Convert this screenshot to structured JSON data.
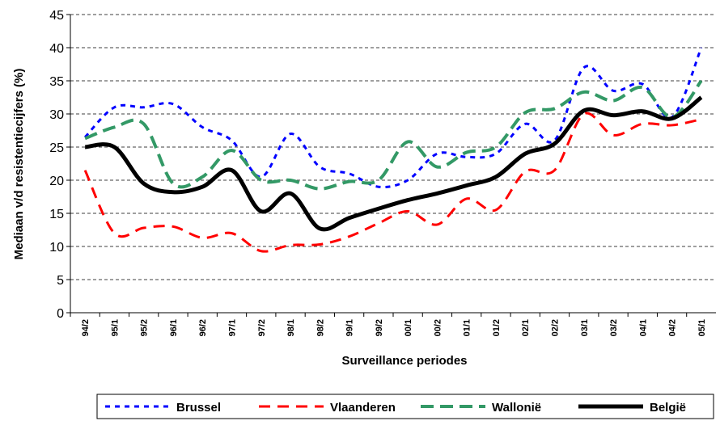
{
  "chart_data": {
    "type": "line",
    "x_label": "Surveillance periodes",
    "y_label": "Mediaan v/d  resistentiecijfers (%)",
    "categories": [
      "94/2",
      "95/1",
      "95/2",
      "96/1",
      "96/2",
      "97/1",
      "97/2",
      "98/1",
      "98/2",
      "99/1",
      "99/2",
      "00/1",
      "00/2",
      "01/1",
      "01/2",
      "02/1",
      "02/2",
      "03/1",
      "03/2",
      "04/1",
      "04/2",
      "05/1"
    ],
    "series": [
      {
        "name": "Brussel",
        "color": "#0000ff",
        "dash": "6 6",
        "width": 3,
        "values": [
          26.5,
          31,
          31,
          31.5,
          28,
          26,
          20.5,
          27,
          22,
          21,
          19,
          20,
          24,
          23.5,
          24,
          28.5,
          26,
          37,
          33.5,
          34.5,
          29.5,
          40
        ]
      },
      {
        "name": "Vlaanderen",
        "color": "#ff0000",
        "dash": "14 9",
        "width": 3,
        "values": [
          21.5,
          12,
          12.8,
          13,
          11.3,
          12,
          9.3,
          10.2,
          10.3,
          11.5,
          13.5,
          15.3,
          13.3,
          17.2,
          15.5,
          21.3,
          21.5,
          30,
          26.8,
          28.5,
          28.3,
          29.2
        ]
      },
      {
        "name": "Wallonië",
        "color": "#339966",
        "dash": "16 8",
        "width": 4,
        "values": [
          26.3,
          28,
          28.5,
          19.5,
          20.5,
          24.5,
          20,
          20,
          18.7,
          19.8,
          20,
          25.8,
          22,
          24.2,
          25,
          30.2,
          30.8,
          33.3,
          32,
          34,
          29.5,
          35
        ]
      },
      {
        "name": "België",
        "color": "#000000",
        "dash": "",
        "width": 5,
        "values": [
          25,
          25,
          19.5,
          18.2,
          19,
          21.5,
          15.3,
          18,
          12.7,
          14.3,
          15.7,
          17,
          18,
          19.2,
          20.5,
          24,
          25.5,
          30.5,
          29.8,
          30.4,
          29.3,
          32.5
        ]
      }
    ],
    "ylim": [
      0,
      45
    ],
    "yticks": [
      0,
      5,
      10,
      15,
      20,
      25,
      30,
      35,
      40,
      45
    ],
    "grid": true,
    "legend": "bottom"
  }
}
